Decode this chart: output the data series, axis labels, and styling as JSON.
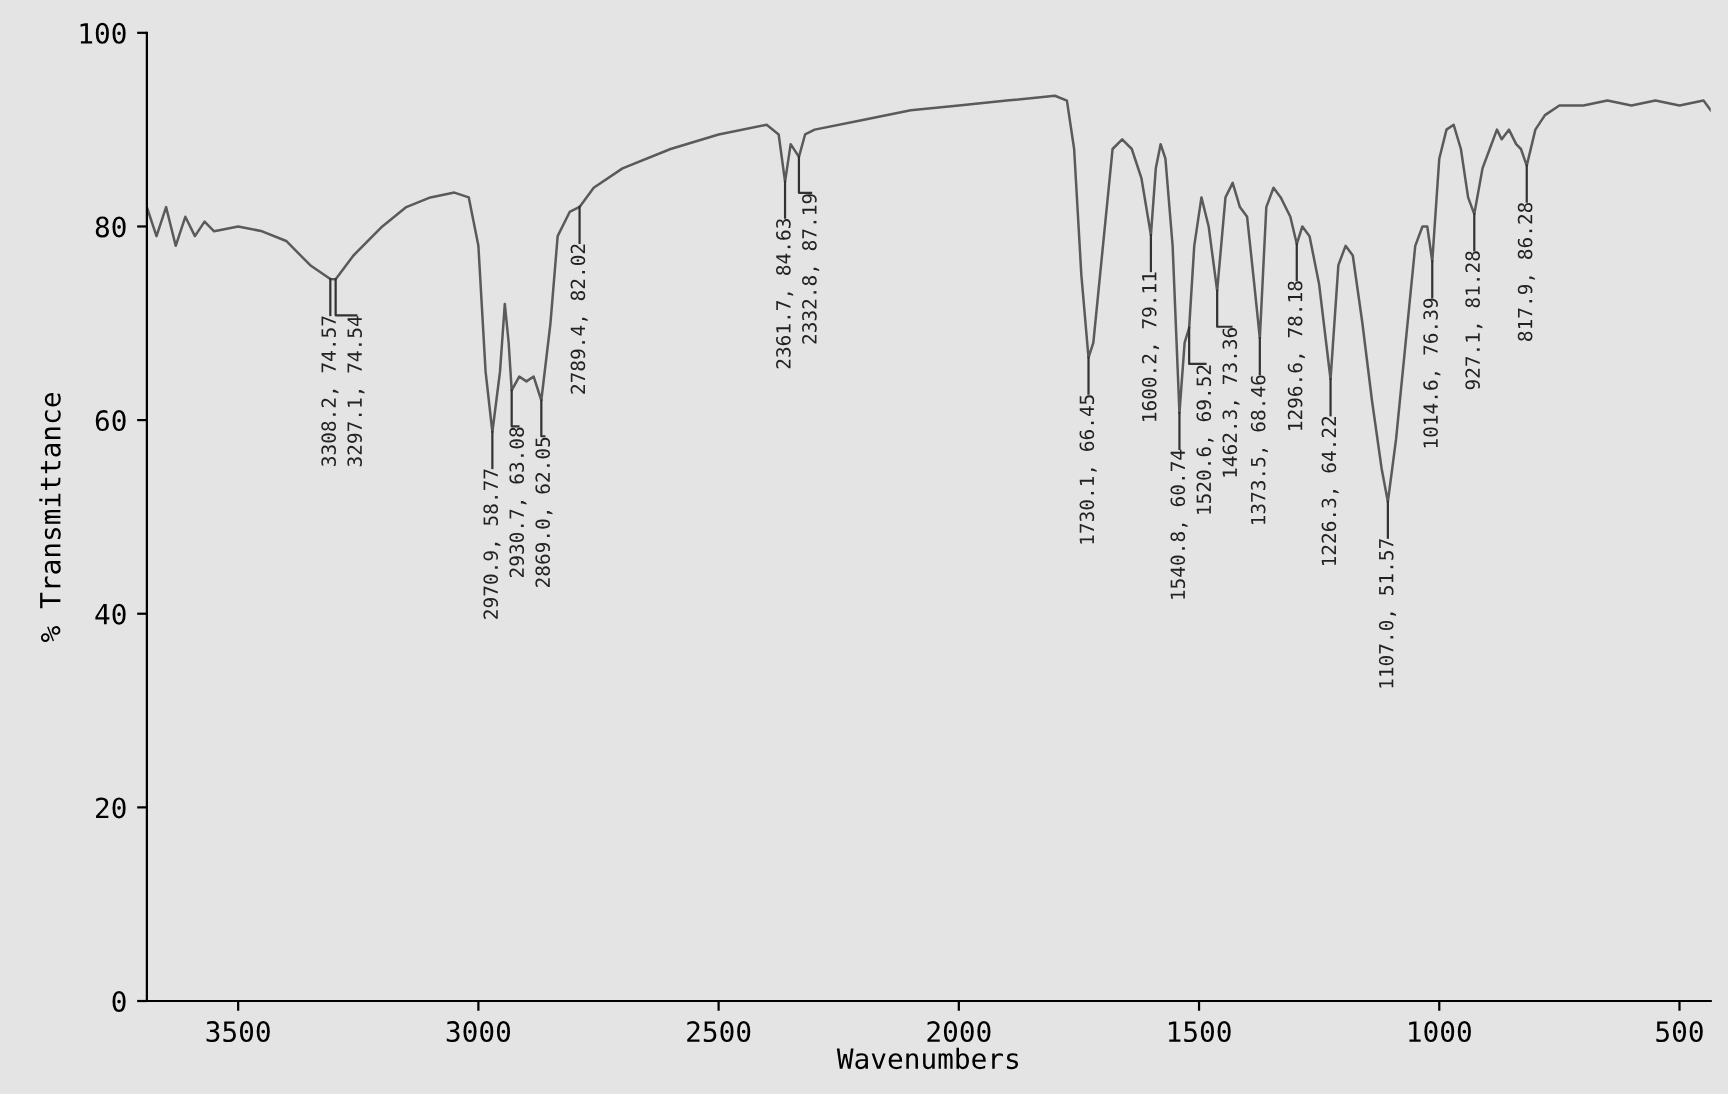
{
  "chart_data": {
    "type": "line",
    "xlabel": "Wavenumbers",
    "ylabel": "% Transmittance",
    "xlim": [
      3690,
      435
    ],
    "xticks": [
      3500,
      3000,
      2500,
      2000,
      1500,
      1000,
      500
    ],
    "ylim": [
      0,
      100
    ],
    "yticks": [
      0,
      20,
      40,
      60,
      80,
      100
    ],
    "grid": false,
    "marker": "none",
    "line_style": "solid",
    "series": [
      {
        "color": "#5a5a5a",
        "x": [
          3690,
          3670,
          3650,
          3630,
          3610,
          3590,
          3570,
          3550,
          3500,
          3450,
          3400,
          3350,
          3308.2,
          3297.1,
          3260,
          3200,
          3150,
          3100,
          3050,
          3020,
          3000,
          2985,
          2970.9,
          2955,
          2945,
          2937,
          2930.7,
          2915,
          2900,
          2885,
          2869.0,
          2850,
          2835,
          2810,
          2789.4,
          2760,
          2700,
          2600,
          2500,
          2400,
          2375,
          2361.7,
          2350,
          2332.8,
          2320,
          2300,
          2200,
          2100,
          2000,
          1900,
          1800,
          1775,
          1760,
          1745,
          1730.1,
          1720,
          1700,
          1680,
          1660,
          1640,
          1620,
          1600.2,
          1590,
          1580,
          1570,
          1555,
          1540.8,
          1530,
          1520.6,
          1510,
          1495,
          1480,
          1462.3,
          1445,
          1430,
          1415,
          1400,
          1385,
          1373.5,
          1360,
          1345,
          1330,
          1310,
          1296.6,
          1285,
          1270,
          1250,
          1226.3,
          1210,
          1195,
          1180,
          1160,
          1140,
          1120,
          1107.0,
          1090,
          1070,
          1050,
          1035,
          1025,
          1014.6,
          1000,
          985,
          970,
          955,
          940,
          927.1,
          910,
          895,
          880,
          870,
          855,
          840,
          830,
          817.9,
          800,
          780,
          750,
          700,
          650,
          600,
          550,
          500,
          450,
          435
        ],
        "values": [
          82,
          79,
          82,
          78,
          81,
          79,
          80.5,
          79.5,
          80,
          79.5,
          78.5,
          76,
          74.57,
          74.54,
          77,
          80,
          82,
          83,
          83.5,
          83,
          78,
          65,
          58.77,
          65,
          72,
          68,
          63.08,
          64.5,
          64,
          64.5,
          62.05,
          70,
          79,
          81.5,
          82.02,
          84,
          86,
          88,
          89.5,
          90.5,
          89.5,
          84.63,
          88.5,
          87.19,
          89.5,
          90,
          91,
          92,
          92.5,
          93,
          93.5,
          93,
          88,
          75,
          66.45,
          68,
          78,
          88,
          89,
          88,
          85,
          79.11,
          86,
          88.5,
          87,
          78,
          60.74,
          68,
          69.52,
          78,
          83,
          80,
          73.36,
          83,
          84.5,
          82,
          81,
          74,
          68.46,
          82,
          84,
          83,
          81,
          78.18,
          80,
          79,
          74,
          64.22,
          76,
          78,
          77,
          70,
          62,
          55,
          51.57,
          58,
          68,
          78,
          80,
          80,
          76.39,
          87,
          90,
          90.5,
          88,
          83,
          81.28,
          86,
          88,
          90,
          89,
          90,
          88.5,
          88,
          86.28,
          90,
          91.5,
          92.5,
          92.5,
          93,
          92.5,
          93,
          92.5,
          93,
          92
        ]
      }
    ],
    "annotations": [
      {
        "text": "3308.2, 74.57",
        "x": 3308.2,
        "y": 74.57
      },
      {
        "text": "3297.1, 74.54",
        "x": 3297.1,
        "y": 74.54
      },
      {
        "text": "2970.9, 58.77",
        "x": 2970.9,
        "y": 58.77
      },
      {
        "text": "2930.7, 63.08",
        "x": 2930.7,
        "y": 63.08
      },
      {
        "text": "2869.0, 62.05",
        "x": 2869.0,
        "y": 62.05
      },
      {
        "text": "2789.4, 82.02",
        "x": 2789.4,
        "y": 82.02
      },
      {
        "text": "2361.7, 84.63",
        "x": 2361.7,
        "y": 84.63
      },
      {
        "text": "2332.8, 87.19",
        "x": 2332.8,
        "y": 87.19
      },
      {
        "text": "1730.1, 66.45",
        "x": 1730.1,
        "y": 66.45
      },
      {
        "text": "1600.2, 79.11",
        "x": 1600.2,
        "y": 79.11
      },
      {
        "text": "1540.8, 60.74",
        "x": 1540.8,
        "y": 60.74
      },
      {
        "text": "1520.6, 69.52",
        "x": 1520.6,
        "y": 69.52
      },
      {
        "text": "1462.3, 73.36",
        "x": 1462.3,
        "y": 73.36
      },
      {
        "text": "1373.5, 68.46",
        "x": 1373.5,
        "y": 68.46
      },
      {
        "text": "1296.6, 78.18",
        "x": 1296.6,
        "y": 78.18
      },
      {
        "text": "1226.3, 64.22",
        "x": 1226.3,
        "y": 64.22
      },
      {
        "text": "1107.0, 51.57",
        "x": 1107.0,
        "y": 51.57
      },
      {
        "text": "1014.6, 76.39",
        "x": 1014.6,
        "y": 76.39
      },
      {
        "text": "927.1, 81.28",
        "x": 927.1,
        "y": 81.28
      },
      {
        "text": "817.9, 86.28",
        "x": 817.9,
        "y": 86.28
      }
    ]
  }
}
